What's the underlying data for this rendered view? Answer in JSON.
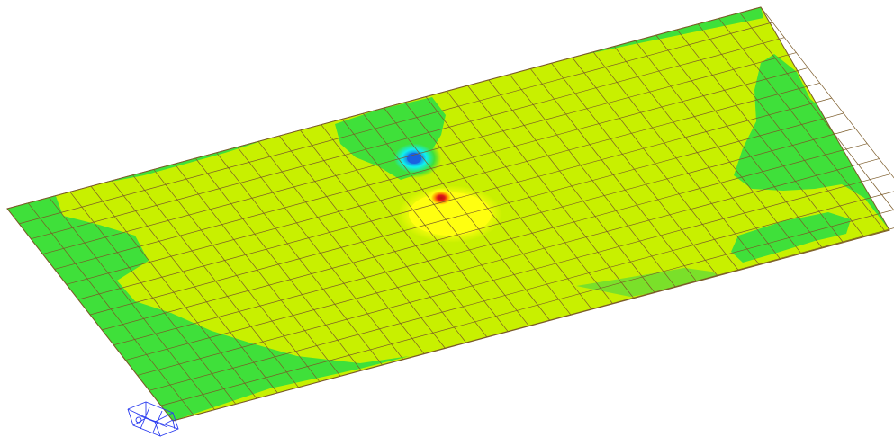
{
  "scene": {
    "mesh": {
      "cols": 36,
      "rows": 14
    },
    "colors": {
      "background": "#ffffff",
      "base": "#c8f000",
      "green": "#3fe03a",
      "light_green": "#7ae02a",
      "yellow": "#ffff10",
      "orange": "#ff9000",
      "red": "#e01818",
      "cyan": "#10f0f0",
      "deep_blue": "#1a60e0",
      "mesh_line": "#7a5a28",
      "axis_triad": "#2b3cf0"
    },
    "icons": [
      "axis-triad-icon"
    ]
  }
}
